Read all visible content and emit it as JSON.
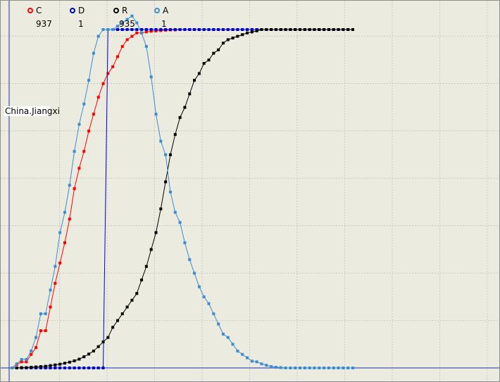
{
  "chart_data": {
    "type": "line",
    "region_label": "China.Jiangxi",
    "legend": [
      {
        "key": "C",
        "value": "937",
        "color": "#ff0000"
      },
      {
        "key": "D",
        "value": "1",
        "color": "#0000cc"
      },
      {
        "key": "R",
        "value": "935",
        "color": "#000000"
      },
      {
        "key": "A",
        "value": "1",
        "color": "#3d8bd1"
      }
    ],
    "grid": true,
    "xlim": [
      0,
      71
    ],
    "ylim": [
      0,
      1
    ],
    "series": [
      {
        "key": "C",
        "color": "#ff0000",
        "values": [
          0.0,
          0.01,
          0.018,
          0.018,
          0.04,
          0.06,
          0.11,
          0.11,
          0.18,
          0.25,
          0.31,
          0.37,
          0.44,
          0.53,
          0.59,
          0.64,
          0.7,
          0.75,
          0.8,
          0.84,
          0.87,
          0.89,
          0.92,
          0.95,
          0.97,
          0.98,
          0.99,
          0.99,
          0.993,
          0.995,
          0.996,
          0.997,
          0.998,
          0.999,
          0.999,
          1,
          1,
          1,
          1,
          1,
          1,
          1,
          1,
          1,
          1,
          1,
          1,
          1,
          1,
          1,
          1,
          1,
          1,
          1,
          1,
          1,
          1,
          1,
          1,
          1,
          1,
          1,
          1,
          1,
          1,
          1,
          1,
          1,
          1,
          1,
          1,
          1
        ]
      },
      {
        "key": "D",
        "color": "#0000cc",
        "values": [
          0,
          0,
          0,
          0,
          0,
          0,
          0,
          0,
          0,
          0,
          0,
          0,
          0,
          0,
          0,
          0,
          0,
          0,
          0,
          0,
          1,
          1,
          1,
          1,
          1,
          1,
          1,
          1,
          1,
          1,
          1,
          1,
          1,
          1,
          1,
          1,
          1,
          1,
          1,
          1,
          1,
          1,
          1,
          1,
          1,
          1,
          1,
          1,
          1,
          1,
          1,
          1,
          1,
          1,
          1,
          1,
          1,
          1,
          1,
          1,
          1,
          1,
          1,
          1,
          1,
          1,
          1,
          1,
          1,
          1,
          1,
          1
        ]
      },
      {
        "key": "R",
        "color": "#000000",
        "values": [
          0,
          0,
          0.001,
          0.001,
          0.002,
          0.003,
          0.004,
          0.005,
          0.007,
          0.009,
          0.011,
          0.014,
          0.017,
          0.021,
          0.026,
          0.033,
          0.041,
          0.05,
          0.063,
          0.077,
          0.09,
          0.12,
          0.14,
          0.16,
          0.18,
          0.2,
          0.22,
          0.26,
          0.3,
          0.35,
          0.4,
          0.47,
          0.55,
          0.63,
          0.69,
          0.74,
          0.77,
          0.81,
          0.85,
          0.87,
          0.9,
          0.91,
          0.93,
          0.94,
          0.96,
          0.97,
          0.975,
          0.98,
          0.985,
          0.99,
          0.993,
          0.996,
          1,
          1,
          1,
          1,
          1,
          1,
          1,
          1,
          1,
          1,
          1,
          1,
          1,
          1,
          1,
          1,
          1,
          1,
          1,
          1
        ]
      },
      {
        "key": "A",
        "color": "#3d8bd1",
        "values": [
          0,
          0.012,
          0.025,
          0.025,
          0.05,
          0.09,
          0.16,
          0.16,
          0.23,
          0.3,
          0.4,
          0.46,
          0.54,
          0.64,
          0.72,
          0.78,
          0.85,
          0.93,
          0.98,
          1.0,
          1.0,
          1.0,
          1.01,
          1.02,
          1.03,
          1.04,
          1.02,
          0.99,
          0.95,
          0.86,
          0.75,
          0.67,
          0.63,
          0.52,
          0.46,
          0.43,
          0.37,
          0.32,
          0.28,
          0.24,
          0.21,
          0.19,
          0.16,
          0.13,
          0.1,
          0.09,
          0.07,
          0.05,
          0.04,
          0.03,
          0.02,
          0.018,
          0.012,
          0.008,
          0.004,
          0.002,
          0.001,
          0,
          0,
          0,
          0,
          0,
          0,
          0,
          0,
          0,
          0,
          0,
          0,
          0,
          0,
          0
        ]
      }
    ]
  }
}
